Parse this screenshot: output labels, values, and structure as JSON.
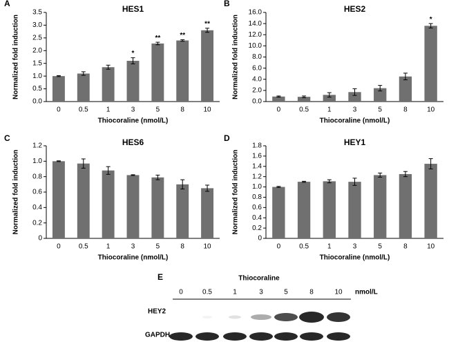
{
  "chart_data": [
    {
      "type": "bar",
      "panel": "A",
      "title": "HES1",
      "ylabel": "Normalized fold induction",
      "xlabel": "Thiocoraline (nmol/L)",
      "categories": [
        "0",
        "0.5",
        "1",
        "3",
        "5",
        "8",
        "10"
      ],
      "values": [
        1.0,
        1.1,
        1.35,
        1.6,
        2.28,
        2.4,
        2.8
      ],
      "errors": [
        0.02,
        0.07,
        0.08,
        0.12,
        0.05,
        0.03,
        0.08
      ],
      "annotations": [
        null,
        null,
        null,
        "*",
        "**",
        "**",
        "**"
      ],
      "color": "#707070",
      "ylim": [
        0,
        3.5
      ],
      "yticks": [
        {
          "value": 0,
          "label": "0.0"
        },
        0.5,
        {
          "value": 1,
          "label": "1.0"
        },
        1.5,
        {
          "value": 2,
          "label": "2.0"
        },
        2.5,
        {
          "value": 3,
          "label": "3.0"
        },
        3.5
      ]
    },
    {
      "type": "bar",
      "panel": "B",
      "title": "HES2",
      "ylabel": "Normalized fold induction",
      "xlabel": "Thiocoraline (nmol/L)",
      "categories": [
        "0",
        "0.5",
        "1",
        "3",
        "5",
        "8",
        "10"
      ],
      "values": [
        0.9,
        0.85,
        1.2,
        1.7,
        2.4,
        4.5,
        13.6
      ],
      "errors": [
        0.1,
        0.15,
        0.4,
        0.6,
        0.5,
        0.6,
        0.4
      ],
      "annotations": [
        null,
        null,
        null,
        null,
        null,
        null,
        "*"
      ],
      "color": "#707070",
      "ylim": [
        0,
        16
      ],
      "yticks": [
        {
          "value": 0,
          "label": "0.0"
        },
        {
          "value": 2,
          "label": "2.0"
        },
        {
          "value": 4,
          "label": "4.0"
        },
        {
          "value": 6,
          "label": "6.0"
        },
        {
          "value": 8,
          "label": "8.0"
        },
        {
          "value": 10,
          "label": "10.0"
        },
        {
          "value": 12,
          "label": "12.0"
        },
        {
          "value": 14,
          "label": "14.0"
        },
        {
          "value": 16,
          "label": "16.0"
        }
      ]
    },
    {
      "type": "bar",
      "panel": "C",
      "title": "HES6",
      "ylabel": "Normalized fold induction",
      "xlabel": "Thiocoraline (nmol/L)",
      "categories": [
        "0",
        "0.5",
        "1",
        "3",
        "5",
        "8",
        "10"
      ],
      "values": [
        1.0,
        0.97,
        0.88,
        0.82,
        0.79,
        0.7,
        0.65
      ],
      "errors": [
        0.005,
        0.06,
        0.05,
        0.005,
        0.03,
        0.06,
        0.04
      ],
      "color": "#707070",
      "ylim": [
        0,
        1.2
      ],
      "yticks": [
        0,
        0.2,
        0.4,
        0.6,
        0.8,
        {
          "value": 1,
          "label": "1.0"
        },
        1.2
      ]
    },
    {
      "type": "bar",
      "panel": "D",
      "title": "HEY1",
      "ylabel": "Normalized fold induction",
      "xlabel": "Thiocoraline (nmol/L)",
      "categories": [
        "0",
        "0.5",
        "1",
        "3",
        "5",
        "8",
        "10"
      ],
      "values": [
        1.0,
        1.1,
        1.11,
        1.1,
        1.23,
        1.25,
        1.45
      ],
      "errors": [
        0.01,
        0.01,
        0.03,
        0.07,
        0.04,
        0.05,
        0.1
      ],
      "color": "#707070",
      "ylim": [
        0,
        1.8
      ],
      "yticks": [
        0,
        0.2,
        0.4,
        0.6,
        0.8,
        {
          "value": 1,
          "label": "1.0"
        },
        1.2,
        1.4,
        1.6,
        1.8
      ]
    }
  ],
  "blot": {
    "panel": "E",
    "title": "Thiocoraline",
    "lanes": [
      "0",
      "0.5",
      "1",
      "3",
      "5",
      "8",
      "10"
    ],
    "unit": "nmol/L",
    "rows": [
      "HEY2",
      "GAPDH"
    ]
  }
}
